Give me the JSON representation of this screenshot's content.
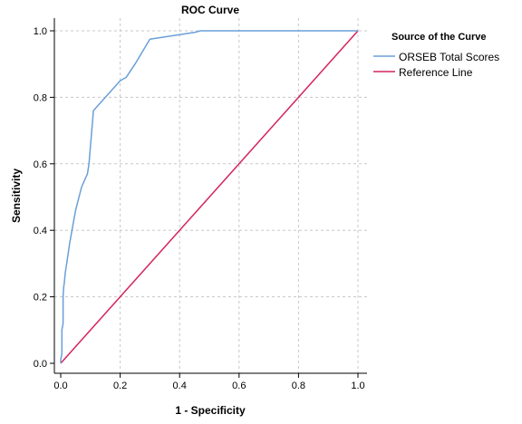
{
  "chart_data": {
    "type": "line",
    "title": "ROC Curve",
    "xlabel": "1 - Specificity",
    "ylabel": "Sensitivity",
    "xlim": [
      0,
      1
    ],
    "ylim": [
      0,
      1
    ],
    "xticks": [
      "0.0",
      "0.2",
      "0.4",
      "0.6",
      "0.8",
      "1.0"
    ],
    "yticks": [
      "0.0",
      "0.2",
      "0.4",
      "0.6",
      "0.8",
      "1.0"
    ],
    "grid": true,
    "legend": {
      "title": "Source of the Curve",
      "placement": "right"
    },
    "series": [
      {
        "name": "ORSEB Total Scores",
        "color": "#6a9fd8",
        "x": [
          0.0,
          0.0,
          0.004,
          0.004,
          0.008,
          0.008,
          0.01,
          0.012,
          0.015,
          0.02,
          0.03,
          0.05,
          0.07,
          0.09,
          0.095,
          0.11,
          0.2,
          0.22,
          0.25,
          0.3,
          0.45,
          0.47,
          0.6,
          0.8,
          1.0
        ],
        "y": [
          0.0,
          0.01,
          0.03,
          0.1,
          0.12,
          0.2,
          0.23,
          0.24,
          0.27,
          0.3,
          0.36,
          0.46,
          0.53,
          0.57,
          0.6,
          0.76,
          0.85,
          0.86,
          0.9,
          0.975,
          0.995,
          1.0,
          1.0,
          1.0,
          1.0
        ]
      },
      {
        "name": "Reference Line",
        "color": "#d4245a",
        "x": [
          0,
          1
        ],
        "y": [
          0,
          1
        ]
      }
    ]
  }
}
